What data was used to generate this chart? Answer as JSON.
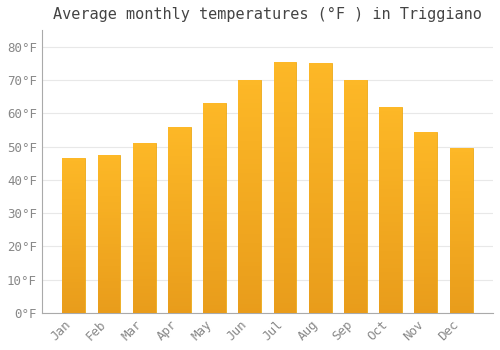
{
  "title": "Average monthly temperatures (°F ) in Triggiano",
  "months": [
    "Jan",
    "Feb",
    "Mar",
    "Apr",
    "May",
    "Jun",
    "Jul",
    "Aug",
    "Sep",
    "Oct",
    "Nov",
    "Dec"
  ],
  "values": [
    46.5,
    47.5,
    51.0,
    56.0,
    63.0,
    70.0,
    75.5,
    75.0,
    70.0,
    62.0,
    54.5,
    49.5
  ],
  "bar_color_top": "#FDB827",
  "bar_color_bottom": "#F5A200",
  "background_color": "#FFFFFF",
  "grid_color": "#E8E8E8",
  "yticks": [
    0,
    10,
    20,
    30,
    40,
    50,
    60,
    70,
    80
  ],
  "ylim": [
    0,
    85
  ],
  "title_fontsize": 11,
  "tick_fontsize": 9,
  "tick_color": "#888888",
  "title_color": "#444444",
  "font_family": "monospace"
}
